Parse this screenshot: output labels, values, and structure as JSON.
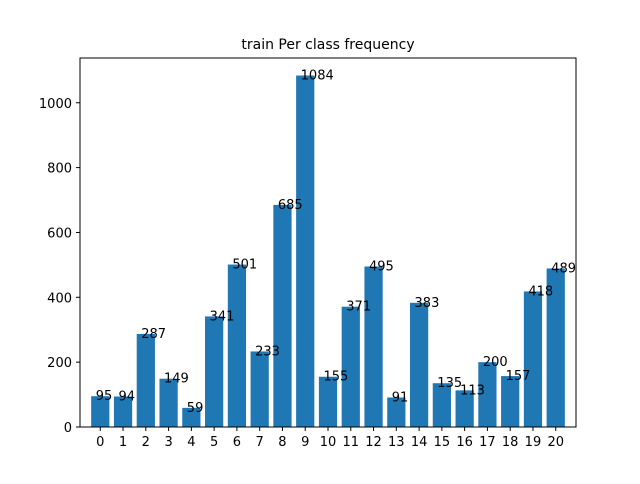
{
  "chart_data": {
    "type": "bar",
    "title": "train Per class frequency",
    "xlabel": "",
    "ylabel": "",
    "categories": [
      "0",
      "1",
      "2",
      "3",
      "4",
      "5",
      "6",
      "7",
      "8",
      "9",
      "10",
      "11",
      "12",
      "13",
      "14",
      "15",
      "16",
      "17",
      "18",
      "19",
      "20"
    ],
    "values": [
      95,
      94,
      287,
      149,
      59,
      341,
      501,
      233,
      685,
      1084,
      155,
      371,
      495,
      91,
      383,
      135,
      113,
      200,
      157,
      418,
      489
    ],
    "data_labels": [
      "95",
      "94",
      "287",
      "149",
      "59",
      "341",
      "501",
      "233",
      "685",
      "1084",
      "155",
      "371",
      "495",
      "91",
      "383",
      "135",
      "113",
      "200",
      "157",
      "418",
      "489"
    ],
    "y_ticks": [
      0,
      200,
      400,
      600,
      800,
      1000
    ],
    "y_tick_labels": [
      "0",
      "200",
      "400",
      "600",
      "800",
      "1000"
    ],
    "ylim": [
      0,
      1138
    ],
    "grid": false,
    "legend": "none",
    "bar_color": "#1f77b4"
  }
}
